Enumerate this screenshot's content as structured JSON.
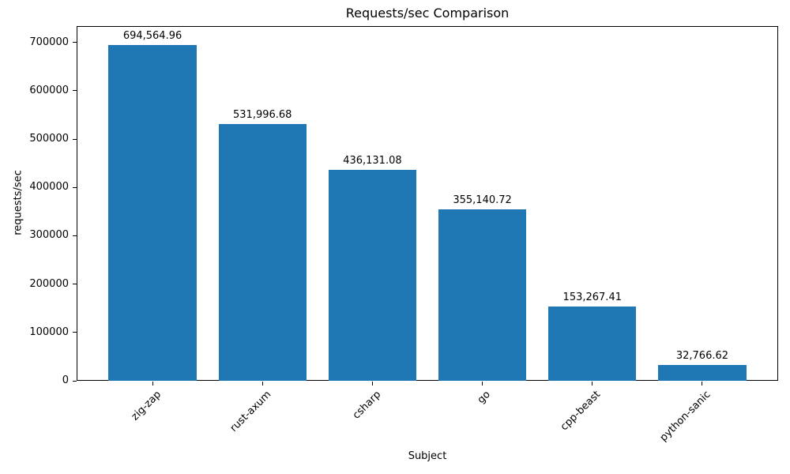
{
  "chart_data": {
    "type": "bar",
    "title": "Requests/sec Comparison",
    "xlabel": "Subject",
    "ylabel": "requests/sec",
    "categories": [
      "zig-zap",
      "rust-axum",
      "csharp",
      "go",
      "cpp-beast",
      "python-sanic"
    ],
    "values": [
      694564.96,
      531996.68,
      436131.08,
      355140.72,
      153267.41,
      32766.62
    ],
    "value_labels": [
      "694,564.96",
      "531,996.68",
      "436,131.08",
      "355,140.72",
      "153,267.41",
      "32,766.62"
    ],
    "y_ticks": [
      0,
      100000,
      200000,
      300000,
      400000,
      500000,
      600000,
      700000
    ],
    "ylim": [
      0,
      734000
    ],
    "bar_color": "#1f77b4",
    "grid": false,
    "legend": null,
    "x_tick_rotation": 45
  }
}
